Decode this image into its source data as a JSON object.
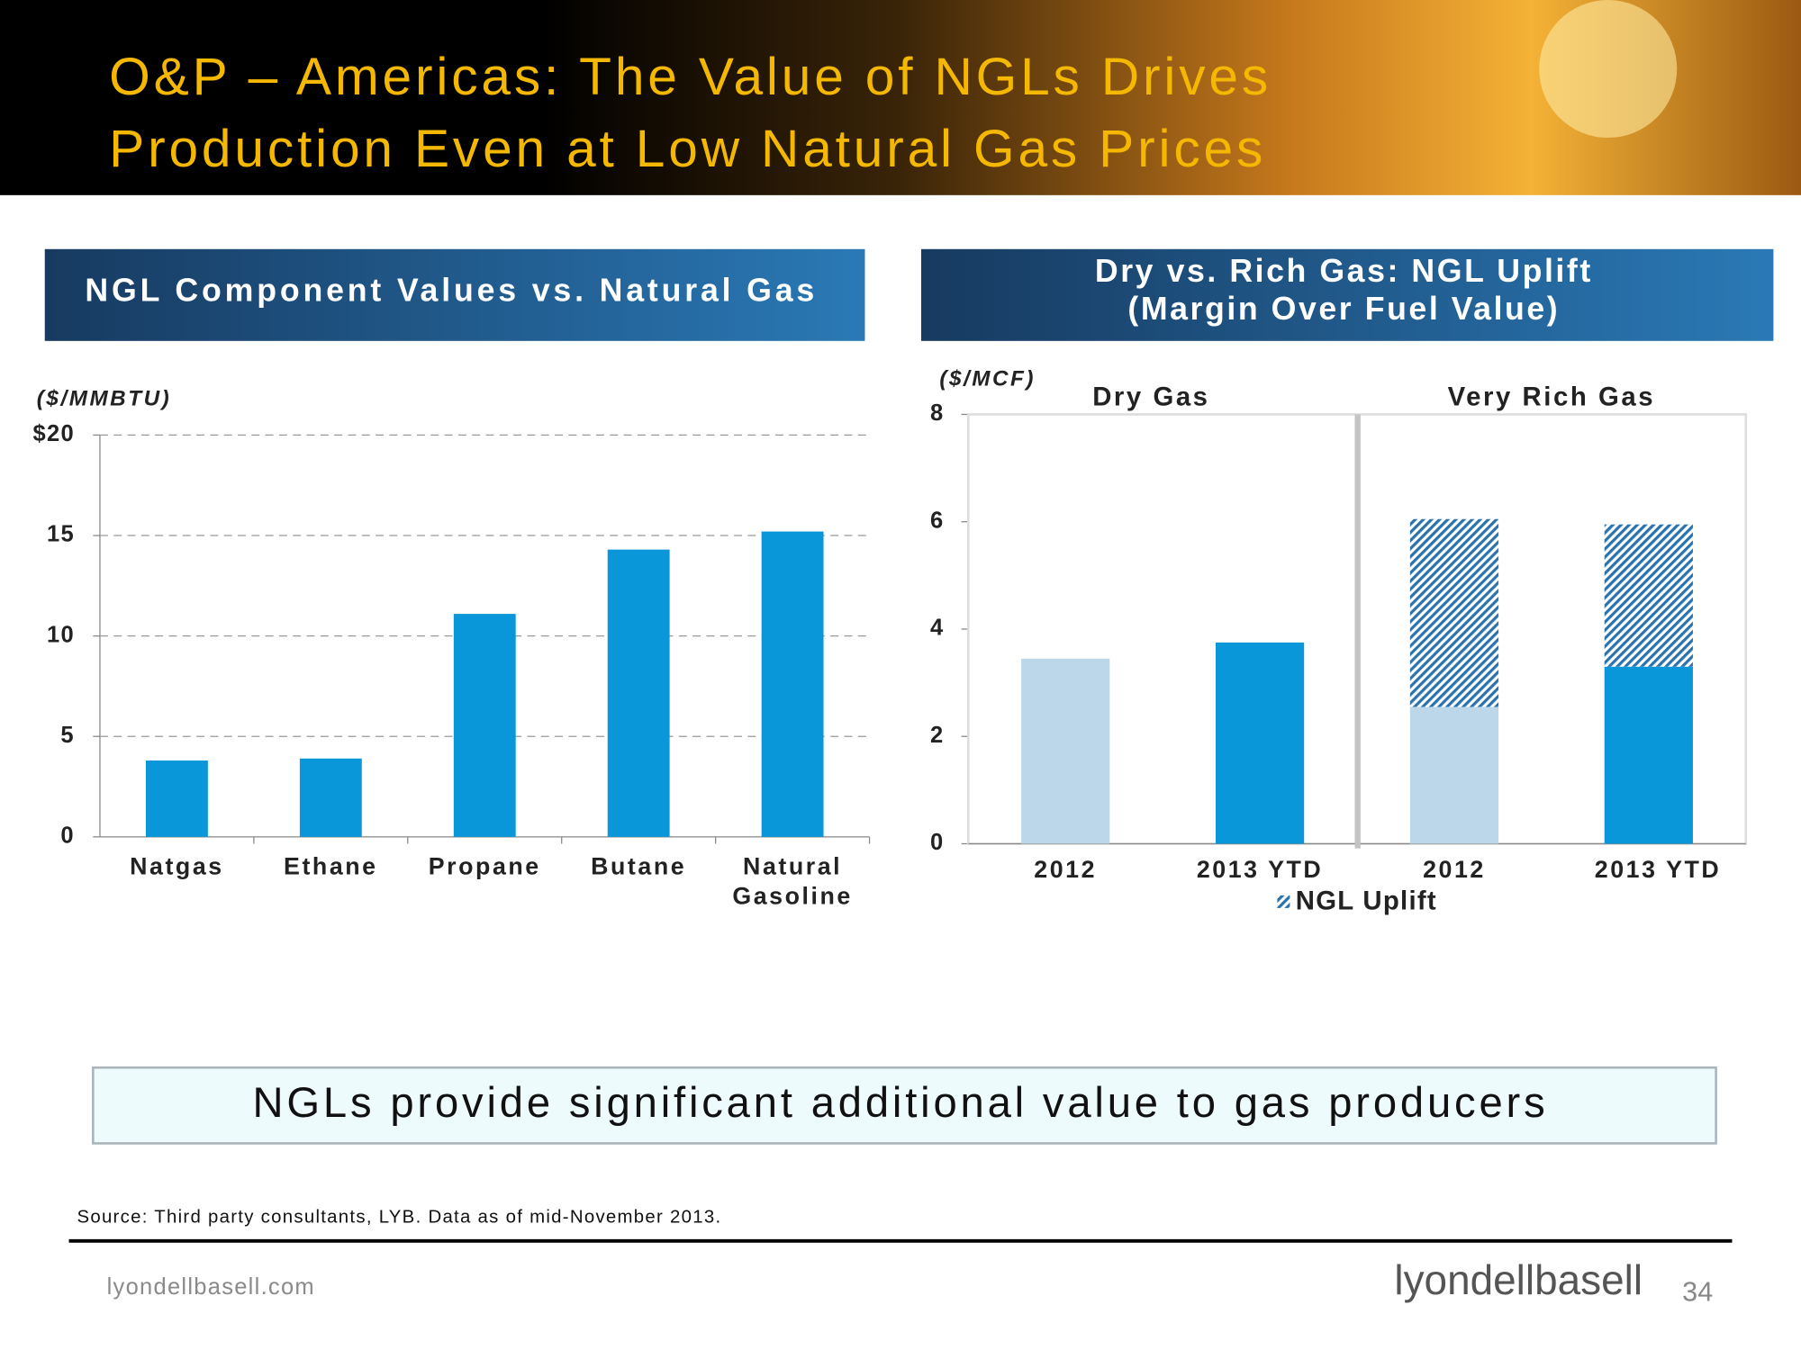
{
  "title": [
    "O&P – Americas: The Value of NGLs Drives",
    "Production Even at Low Natural Gas Prices"
  ],
  "chart_data": [
    {
      "type": "bar",
      "title": "NGL Component Values vs. Natural Gas",
      "y_label": "($/MMBTU)",
      "categories": [
        "Natgas",
        "Ethane",
        "Propane",
        "Butane",
        "Natural Gasoline"
      ],
      "values": [
        3.8,
        3.9,
        11.1,
        14.3,
        15.2
      ],
      "color": "#0a97d9",
      "ylim": [
        0,
        20
      ],
      "yticks": [
        0,
        5,
        10,
        15,
        {
          "value": 20,
          "label": "$20"
        }
      ],
      "grid": true
    },
    {
      "type": "stacked",
      "title": [
        "Dry vs. Rich Gas: NGL Uplift",
        "(Margin Over Fuel Value)"
      ],
      "y_label": "($/MCF)",
      "groups": [
        "Dry Gas",
        "Very Rich Gas"
      ],
      "categories": [
        "2012",
        "2013 YTD",
        "2012",
        "2013 YTD"
      ],
      "series": [
        {
          "colors": [
            "#bcd7ea",
            "#0a97d9",
            "#bcd7ea",
            "#0a97d9"
          ],
          "values": [
            3.45,
            3.75,
            2.55,
            3.3
          ]
        },
        {
          "name": "NGL Uplift",
          "color": "#2a73ad",
          "pattern": "hatch",
          "values": [
            null,
            null,
            3.5,
            2.65
          ]
        }
      ],
      "ylim": [
        0,
        8
      ],
      "yticks": [
        0,
        2,
        4,
        6,
        8
      ],
      "grid": false
    }
  ],
  "callout": "NGLs provide significant additional value to gas producers",
  "source": "Source: Third party consultants, LYB. Data as of mid-November 2013.",
  "footer": {
    "website": "lyondellbasell.com",
    "logo": "lyondellbasell",
    "page": "34"
  }
}
